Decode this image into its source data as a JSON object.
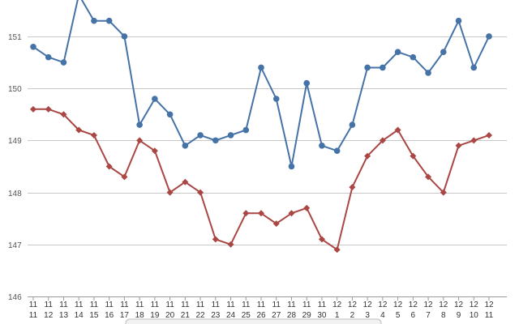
{
  "chart_data": {
    "type": "line",
    "x": [
      [
        "11",
        "11"
      ],
      [
        "11",
        "12"
      ],
      [
        "11",
        "13"
      ],
      [
        "11",
        "14"
      ],
      [
        "11",
        "15"
      ],
      [
        "11",
        "16"
      ],
      [
        "11",
        "17"
      ],
      [
        "11",
        "18"
      ],
      [
        "11",
        "19"
      ],
      [
        "11",
        "20"
      ],
      [
        "11",
        "21"
      ],
      [
        "11",
        "22"
      ],
      [
        "11",
        "23"
      ],
      [
        "11",
        "24"
      ],
      [
        "11",
        "25"
      ],
      [
        "11",
        "26"
      ],
      [
        "11",
        "27"
      ],
      [
        "11",
        "28"
      ],
      [
        "11",
        "29"
      ],
      [
        "11",
        "30"
      ],
      [
        "12",
        "1"
      ],
      [
        "12",
        "2"
      ],
      [
        "12",
        "3"
      ],
      [
        "12",
        "4"
      ],
      [
        "12",
        "5"
      ],
      [
        "12",
        "6"
      ],
      [
        "12",
        "7"
      ],
      [
        "12",
        "8"
      ],
      [
        "12",
        "9"
      ],
      [
        "12",
        "10"
      ],
      [
        "12",
        "11"
      ]
    ],
    "ylim": [
      146,
      151.7
    ],
    "yticks": [
      146,
      147,
      148,
      149,
      150,
      151
    ],
    "grid": true,
    "series": [
      {
        "color": "#4572a7",
        "marker": "circle",
        "values": [
          150.8,
          150.6,
          150.5,
          151.8,
          151.3,
          151.3,
          151.0,
          149.3,
          149.8,
          149.5,
          148.9,
          149.1,
          149.0,
          149.1,
          149.2,
          150.4,
          149.8,
          148.5,
          150.1,
          148.9,
          148.8,
          149.3,
          150.4,
          150.4,
          150.7,
          150.6,
          150.3,
          150.7,
          151.3,
          150.4,
          151.0
        ]
      },
      {
        "color": "#aa4643",
        "marker": "diamond",
        "values": [
          149.6,
          149.6,
          149.5,
          149.2,
          149.1,
          148.5,
          148.3,
          149.0,
          148.8,
          148.0,
          148.2,
          148.0,
          147.1,
          147.0,
          147.6,
          147.6,
          147.4,
          147.6,
          147.7,
          147.1,
          146.9,
          148.1,
          148.7,
          149.0,
          149.2,
          148.7,
          148.3,
          148.0,
          148.9,
          149.0,
          149.1
        ]
      }
    ]
  }
}
